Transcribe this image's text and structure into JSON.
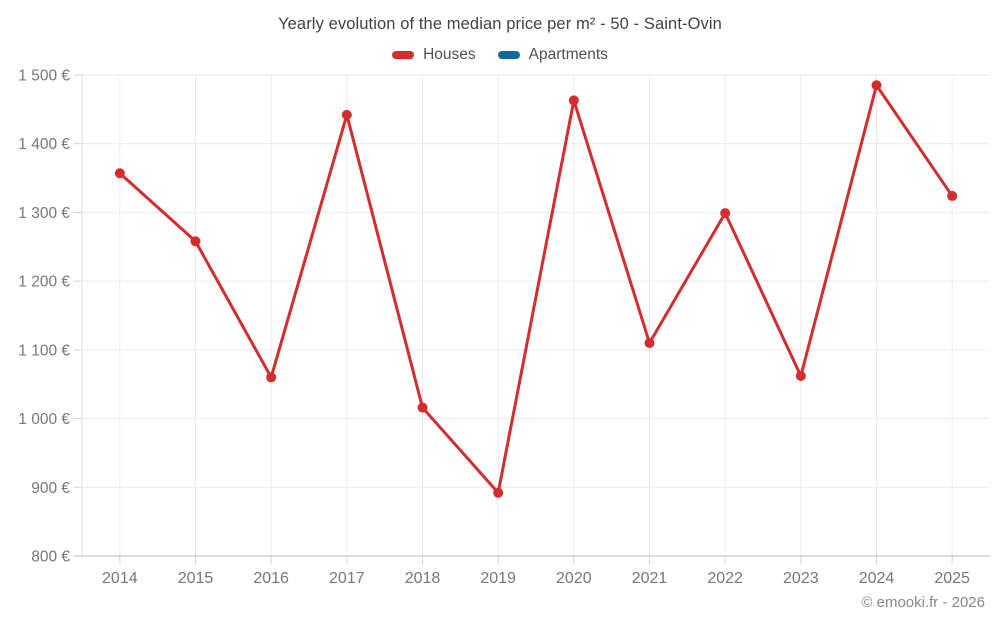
{
  "header": {
    "title": "Yearly evolution of the median price per m² - 50 - Saint-Ovin"
  },
  "footer": {
    "credit": "© emooki.fr - 2026"
  },
  "colors": {
    "houses": "#d42d2f",
    "apartments": "#11699e",
    "axis_text": "#75787b",
    "title_text": "#3f4348"
  },
  "chart_data": {
    "type": "line",
    "title": "Yearly evolution of the median price per m² - 50 - Saint-Ovin",
    "x": [
      2014,
      2015,
      2016,
      2017,
      2018,
      2019,
      2020,
      2021,
      2022,
      2023,
      2024,
      2025
    ],
    "series": [
      {
        "name": "Houses",
        "color": "#d42d2f",
        "values": [
          1357,
          1258,
          1060,
          1442,
          1016,
          892,
          1463,
          1110,
          1299,
          1062,
          1485,
          1324
        ]
      },
      {
        "name": "Apartments",
        "color": "#11699e",
        "values": []
      }
    ],
    "ylabel": "",
    "xlabel": "",
    "ylim": [
      800,
      1500
    ],
    "ytick_step": 100,
    "ytick_format": "{value} €",
    "grid": true,
    "legend_position": "top",
    "marker_radius": 5,
    "line_width": 3
  }
}
